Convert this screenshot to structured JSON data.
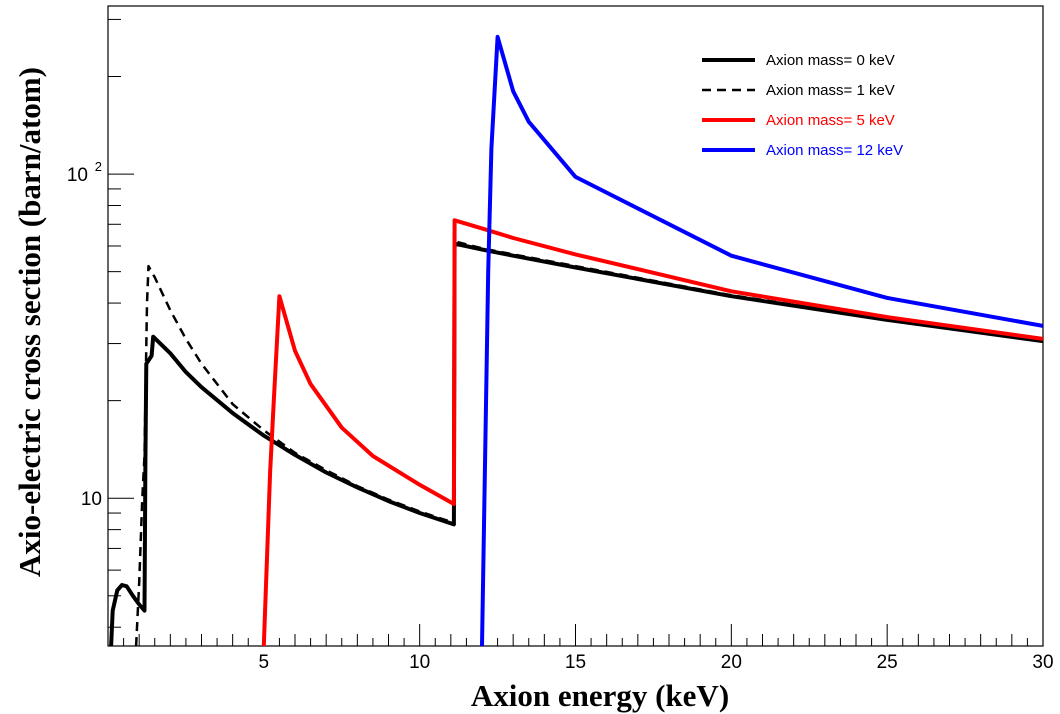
{
  "chart_data": {
    "type": "line",
    "xlabel": "Axion energy (keV)",
    "ylabel": "Axio-electric cross section (barn/atom)",
    "xlim": [
      0,
      30
    ],
    "ylim": [
      3.5,
      330
    ],
    "y_scale": "log",
    "x_ticks": [
      5,
      10,
      15,
      20,
      25,
      30
    ],
    "y_tick_labels": [
      {
        "value": 10,
        "label": "10"
      },
      {
        "value": 100,
        "label": "10",
        "sup": "2"
      }
    ],
    "grid": false,
    "legend_position": "top-right",
    "series": [
      {
        "name": "Axion mass= 0 keV",
        "color": "#000000",
        "style": "solid",
        "points": [
          [
            0.1,
            3.5
          ],
          [
            0.15,
            4.5
          ],
          [
            0.3,
            5.2
          ],
          [
            0.45,
            5.4
          ],
          [
            0.6,
            5.35
          ],
          [
            0.8,
            5.0
          ],
          [
            1.0,
            4.7
          ],
          [
            1.17,
            4.5
          ],
          [
            1.2,
            13.0
          ],
          [
            1.23,
            26.0
          ],
          [
            1.4,
            27.5
          ],
          [
            1.45,
            31.5
          ],
          [
            2,
            28
          ],
          [
            2.5,
            24.5
          ],
          [
            3,
            22
          ],
          [
            4,
            18.3
          ],
          [
            5,
            15.6
          ],
          [
            6,
            13.6
          ],
          [
            7,
            12.0
          ],
          [
            8,
            10.8
          ],
          [
            9,
            9.8
          ],
          [
            10,
            9.0
          ],
          [
            11.1,
            8.3
          ],
          [
            11.12,
            61
          ],
          [
            12,
            58.5
          ],
          [
            13,
            56
          ],
          [
            15,
            51.5
          ],
          [
            20,
            42
          ],
          [
            25,
            35.5
          ],
          [
            30,
            30.5
          ]
        ]
      },
      {
        "name": "Axion mass= 1 keV",
        "color": "#000000",
        "style": "dashed",
        "points": [
          [
            0.9,
            3.5
          ],
          [
            1.0,
            5.5
          ],
          [
            1.1,
            10
          ],
          [
            1.17,
            13.5
          ],
          [
            1.2,
            20
          ],
          [
            1.25,
            40
          ],
          [
            1.3,
            52
          ],
          [
            1.5,
            48
          ],
          [
            2,
            38
          ],
          [
            2.5,
            31
          ],
          [
            3,
            26
          ],
          [
            4,
            19.5
          ],
          [
            5,
            16.2
          ],
          [
            6,
            13.8
          ],
          [
            7,
            12.2
          ],
          [
            8,
            10.9
          ],
          [
            9,
            9.9
          ],
          [
            10,
            9.1
          ],
          [
            11.1,
            8.4
          ],
          [
            11.12,
            62
          ],
          [
            12,
            59
          ],
          [
            13,
            56.5
          ],
          [
            15,
            52
          ],
          [
            20,
            42.3
          ],
          [
            25,
            35.7
          ],
          [
            30,
            30.7
          ]
        ]
      },
      {
        "name": "Axion mass= 5 keV",
        "color": "#ff0000",
        "style": "solid",
        "points": [
          [
            5.0,
            3.5
          ],
          [
            5.2,
            12
          ],
          [
            5.32,
            20
          ],
          [
            5.5,
            42
          ],
          [
            6,
            28.5
          ],
          [
            6.5,
            22.5
          ],
          [
            7.5,
            16.5
          ],
          [
            8.5,
            13.5
          ],
          [
            10,
            11
          ],
          [
            11.1,
            9.6
          ],
          [
            11.12,
            72
          ],
          [
            12,
            68
          ],
          [
            13,
            63.5
          ],
          [
            15,
            56.5
          ],
          [
            20,
            43.5
          ],
          [
            25,
            36.2
          ],
          [
            30,
            31
          ]
        ]
      },
      {
        "name": "Axion mass= 12 keV",
        "color": "#0000ff",
        "style": "solid",
        "points": [
          [
            12.0,
            3.5
          ],
          [
            12.2,
            50
          ],
          [
            12.3,
            120
          ],
          [
            12.5,
            265
          ],
          [
            13,
            180
          ],
          [
            13.5,
            145
          ],
          [
            15,
            98
          ],
          [
            20,
            56
          ],
          [
            25,
            41.5
          ],
          [
            30,
            34
          ]
        ]
      }
    ]
  }
}
